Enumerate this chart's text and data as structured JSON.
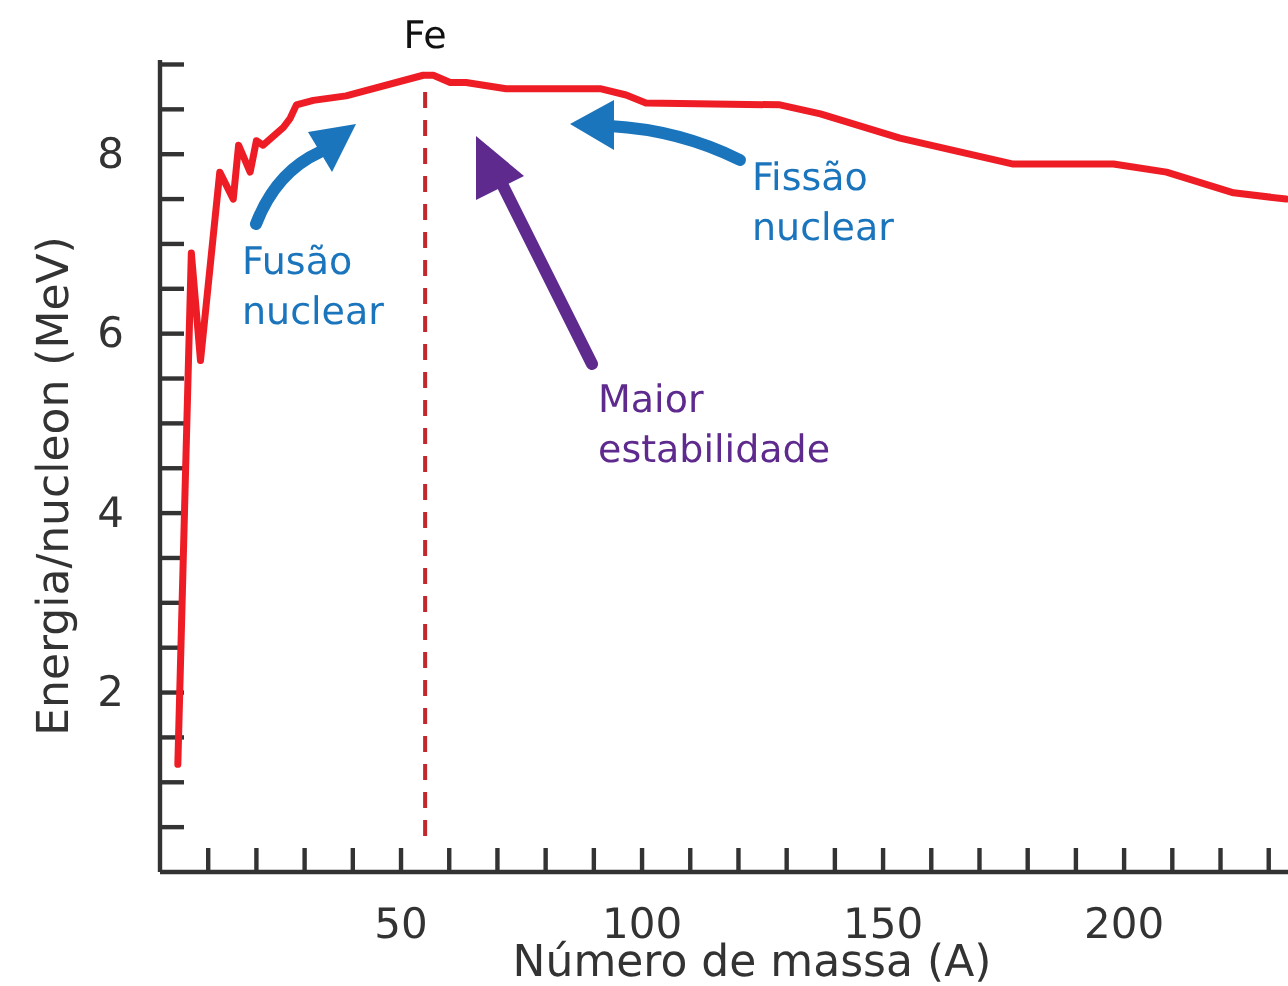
{
  "chart_data": {
    "type": "line",
    "xlabel": "Número de massa (A)",
    "ylabel": "Energia/nucleon (MeV)",
    "annotations": [
      "Fusão nuclear",
      "Fissão nuclear",
      "Maior estabilidade"
    ],
    "ref_lines": [
      {
        "axis": "x",
        "value": 55,
        "label": "Fe",
        "color": "#c1272d",
        "line_style": "dashed"
      }
    ],
    "xlim": [
      0,
      234
    ],
    "xticks": [
      {
        "value": 10,
        "label": null
      },
      {
        "value": 20,
        "label": null
      },
      {
        "value": 30,
        "label": null
      },
      {
        "value": 40,
        "label": null
      },
      50,
      {
        "value": 60,
        "label": null
      },
      {
        "value": 70,
        "label": null
      },
      {
        "value": 80,
        "label": null
      },
      {
        "value": 90,
        "label": null
      },
      100,
      {
        "value": 110,
        "label": null
      },
      {
        "value": 120,
        "label": null
      },
      {
        "value": 130,
        "label": null
      },
      {
        "value": 140,
        "label": null
      },
      150,
      {
        "value": 160,
        "label": null
      },
      {
        "value": 170,
        "label": null
      },
      {
        "value": 180,
        "label": null
      },
      {
        "value": 190,
        "label": null
      },
      200,
      {
        "value": 210,
        "label": null
      },
      {
        "value": 220,
        "label": null
      },
      {
        "value": 230,
        "label": null
      }
    ],
    "ylim": [
      0,
      9.05
    ],
    "yticks": [
      {
        "value": 0.5,
        "label": null
      },
      {
        "value": 1,
        "label": null
      },
      {
        "value": 1.5,
        "label": null
      },
      2,
      {
        "value": 2.5,
        "label": null
      },
      {
        "value": 3,
        "label": null
      },
      {
        "value": 3.5,
        "label": null
      },
      4,
      {
        "value": 4.5,
        "label": null
      },
      {
        "value": 5,
        "label": null
      },
      {
        "value": 5.5,
        "label": null
      },
      6,
      {
        "value": 6.5,
        "label": null
      },
      {
        "value": 7,
        "label": null
      },
      {
        "value": 7.5,
        "label": null
      },
      8,
      {
        "value": 8.5,
        "label": null
      },
      {
        "value": 9,
        "label": null
      }
    ],
    "marker": "none",
    "line_style": "solid",
    "series": [
      {
        "color": "#ee1c25",
        "x": [
          3.7,
          6.5,
          8.4,
          12.4,
          15.2,
          16.3,
          18.7,
          20,
          21.4,
          25.6,
          27,
          28.3,
          31.8,
          38.6,
          54.6,
          56.7,
          60.2,
          63.5,
          71.8,
          91.3,
          96.7,
          100.8,
          128.6,
          137,
          153.5,
          177,
          197.8,
          208.8,
          222.7,
          233.6
        ],
        "values": [
          1.2,
          6.9,
          5.7,
          7.8,
          7.5,
          8.1,
          7.8,
          8.15,
          8.1,
          8.3,
          8.4,
          8.55,
          8.6,
          8.65,
          8.88,
          8.88,
          8.8,
          8.8,
          8.73,
          8.73,
          8.66,
          8.57,
          8.55,
          8.45,
          8.18,
          7.89,
          7.89,
          7.8,
          7.57,
          7.5
        ]
      }
    ]
  }
}
